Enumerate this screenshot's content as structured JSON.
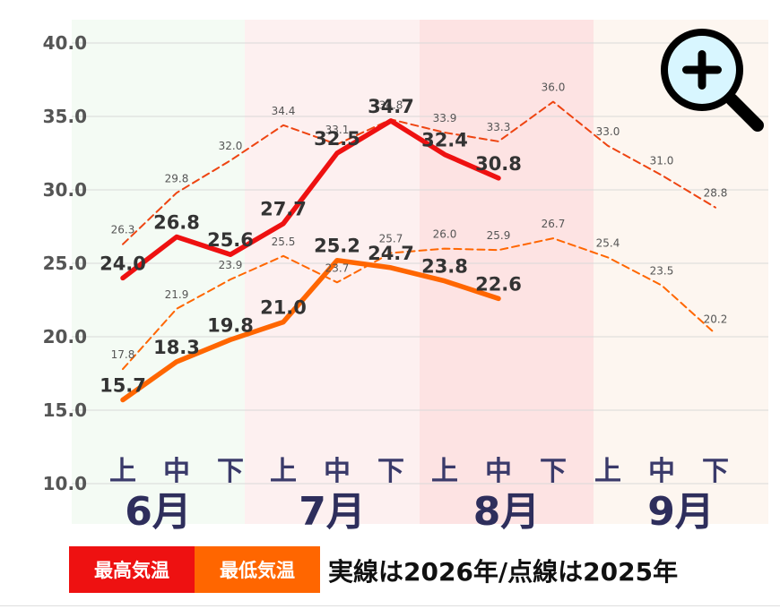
{
  "chart_data": {
    "type": "line",
    "title": "",
    "xlabel": "",
    "ylabel": "",
    "ylim": [
      10.0,
      40.0
    ],
    "yticks": [
      "10.0",
      "15.0",
      "20.0",
      "25.0",
      "30.0",
      "35.0",
      "40.0"
    ],
    "grid": true,
    "months": [
      "6月",
      "7月",
      "8月",
      "9月"
    ],
    "month_colors": [
      "#f4fbf4",
      "#fdf0f0",
      "#fde3e3",
      "#fdf6f0"
    ],
    "periods": [
      "上",
      "中",
      "下"
    ],
    "series": [
      {
        "name": "最高気温",
        "year": "2026年",
        "style": "solid",
        "color": "#ee1111",
        "values": [
          24.0,
          26.8,
          25.6,
          27.7,
          32.5,
          34.7,
          32.4,
          30.8
        ],
        "labels": [
          "24.0",
          "26.8",
          "25.6",
          "27.7",
          "32.5",
          "34.7",
          "32.4",
          "30.8"
        ]
      },
      {
        "name": "最低気温",
        "year": "2026年",
        "style": "solid",
        "color": "#ff6600",
        "values": [
          15.7,
          18.3,
          19.8,
          21.0,
          25.2,
          24.7,
          23.8,
          22.6
        ],
        "labels": [
          "15.7",
          "18.3",
          "19.8",
          "21.0",
          "25.2",
          "24.7",
          "23.8",
          "22.6"
        ]
      },
      {
        "name": "最高気温",
        "year": "2025年",
        "style": "dashed",
        "color": "#ee4411",
        "values": [
          26.3,
          29.8,
          32.0,
          34.4,
          33.1,
          34.8,
          33.9,
          33.3,
          36.0,
          33.0,
          31.0,
          28.8
        ],
        "labels": [
          "26.3",
          "29.8",
          "32.0",
          "34.4",
          "33.1",
          "34.8",
          "33.9",
          "33.3",
          "36.0",
          "33.0",
          "31.0",
          "28.8"
        ]
      },
      {
        "name": "最低気温",
        "year": "2025年",
        "style": "dashed",
        "color": "#ff6600",
        "values": [
          17.8,
          21.9,
          23.9,
          25.5,
          23.7,
          25.7,
          26.0,
          25.9,
          26.7,
          25.4,
          23.5,
          20.2
        ],
        "labels": [
          "17.8",
          "21.9",
          "23.9",
          "25.5",
          "23.7",
          "25.7",
          "26.0",
          "25.9",
          "26.7",
          "25.4",
          "23.5",
          "20.2"
        ]
      }
    ]
  },
  "legend": {
    "max_label": "最高気温",
    "max_color": "#ee1111",
    "min_label": "最低気温",
    "min_color": "#ff6600",
    "note": "実線は2026年/点線は2025年"
  },
  "zoom_icon": "zoom-in-icon"
}
